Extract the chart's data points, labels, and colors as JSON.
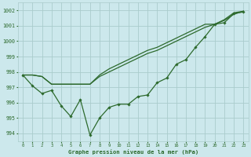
{
  "background_color": "#cce8ec",
  "grid_color": "#aacccc",
  "line_color": "#2d6a2d",
  "marker_color": "#2d6a2d",
  "text_color": "#2d6a2d",
  "xlabel": "Graphe pression niveau de la mer (hPa)",
  "ylim": [
    993.5,
    1002.5
  ],
  "xlim": [
    -0.5,
    23.5
  ],
  "yticks": [
    994,
    995,
    996,
    997,
    998,
    999,
    1000,
    1001,
    1002
  ],
  "xticks": [
    0,
    1,
    2,
    3,
    4,
    5,
    6,
    7,
    8,
    9,
    10,
    11,
    12,
    13,
    14,
    15,
    16,
    17,
    18,
    19,
    20,
    21,
    22,
    23
  ],
  "series_noisy": [
    997.8,
    997.1,
    996.6,
    996.8,
    995.8,
    995.1,
    996.2,
    993.9,
    995.0,
    995.7,
    995.9,
    995.9,
    996.4,
    996.5,
    997.3,
    997.6,
    998.5,
    998.8,
    999.6,
    1000.3,
    1001.1,
    1001.2,
    1001.8,
    1001.9
  ],
  "series_smooth1": [
    997.8,
    997.8,
    997.7,
    997.2,
    997.2,
    997.2,
    997.2,
    997.2,
    997.8,
    998.2,
    998.5,
    998.8,
    999.1,
    999.4,
    999.6,
    999.9,
    1000.2,
    1000.5,
    1000.8,
    1001.1,
    1001.1,
    1001.4,
    1001.85,
    1001.95
  ],
  "series_smooth2": [
    997.8,
    997.8,
    997.7,
    997.2,
    997.2,
    997.2,
    997.2,
    997.2,
    997.7,
    998.0,
    998.3,
    998.6,
    998.9,
    999.2,
    999.4,
    999.7,
    1000.0,
    1000.3,
    1000.6,
    1000.9,
    1001.1,
    1001.35,
    1001.75,
    1001.95
  ],
  "figsize": [
    3.2,
    2.0
  ],
  "dpi": 100
}
